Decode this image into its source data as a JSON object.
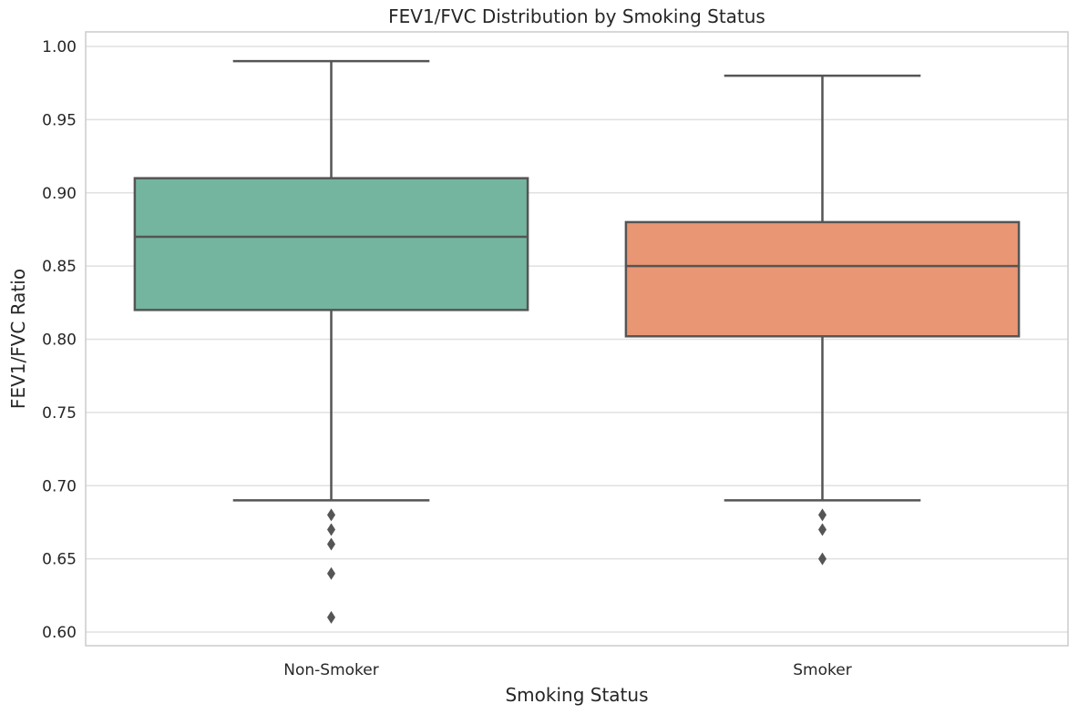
{
  "chart_data": {
    "type": "box",
    "title": "FEV1/FVC Distribution by Smoking Status",
    "xlabel": "Smoking Status",
    "ylabel": "FEV1/FVC Ratio",
    "ylim": [
      0.59,
      1.01
    ],
    "yticks": [
      "0.60",
      "0.65",
      "0.70",
      "0.75",
      "0.80",
      "0.85",
      "0.90",
      "0.95",
      "1.00"
    ],
    "grid": true,
    "categories": [
      "Non-Smoker",
      "Smoker"
    ],
    "boxes": [
      {
        "category": "Non-Smoker",
        "whisker_low": 0.69,
        "q1": 0.82,
        "median": 0.87,
        "q3": 0.91,
        "whisker_high": 0.99,
        "outliers": [
          0.68,
          0.67,
          0.66,
          0.64,
          0.61
        ],
        "color": "#74b5a0"
      },
      {
        "category": "Smoker",
        "whisker_low": 0.69,
        "q1": 0.802,
        "median": 0.85,
        "q3": 0.88,
        "whisker_high": 0.98,
        "outliers": [
          0.68,
          0.67,
          0.65
        ],
        "color": "#e99674"
      }
    ]
  }
}
